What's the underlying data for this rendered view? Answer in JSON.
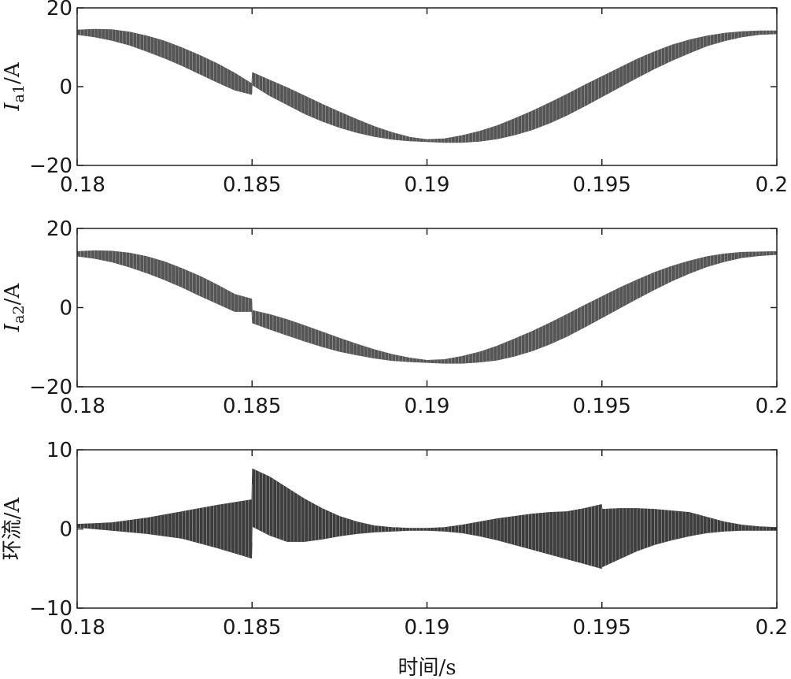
{
  "chart_data": [
    {
      "type": "line",
      "ylabel_main": "I",
      "ylabel_sub": "a1",
      "ylabel_unit": "/A",
      "xlabel": "",
      "xlim": [
        0.18,
        0.2
      ],
      "ylim": [
        -20,
        20
      ],
      "xticks": [
        0.18,
        0.185,
        0.19,
        0.195,
        0.2
      ],
      "xtick_labels": [
        "0.18",
        "0.185",
        "0.19",
        "0.195",
        "0.2"
      ],
      "yticks": [
        -20,
        0,
        20
      ],
      "ytick_labels": [
        "−20",
        "0",
        "20"
      ],
      "grid": false,
      "color": "#555555",
      "series": [
        {
          "x": [
            0.18,
            0.1805,
            0.181,
            0.1815,
            0.182,
            0.1825,
            0.183,
            0.1835,
            0.184,
            0.1845,
            0.18499,
            0.18501,
            0.1855,
            0.186,
            0.1865,
            0.187,
            0.1875,
            0.188,
            0.1885,
            0.189,
            0.1895,
            0.19,
            0.1905,
            0.191,
            0.1915,
            0.192,
            0.1925,
            0.193,
            0.1935,
            0.194,
            0.1945,
            0.195,
            0.1955,
            0.196,
            0.1965,
            0.197,
            0.1975,
            0.198,
            0.1985,
            0.199,
            0.1995,
            0.2
          ],
          "center": [
            13.8,
            13.6,
            13.1,
            12.2,
            10.9,
            9.4,
            7.6,
            5.6,
            3.5,
            1.3,
            -0.6,
            2.0,
            -0.3,
            -2.4,
            -4.6,
            -6.6,
            -8.4,
            -10.0,
            -11.4,
            -12.5,
            -13.3,
            -13.7,
            -13.7,
            -13.3,
            -12.6,
            -11.6,
            -10.2,
            -8.6,
            -6.7,
            -4.6,
            -2.3,
            0.0,
            2.3,
            4.6,
            6.7,
            8.6,
            10.2,
            11.6,
            12.6,
            13.3,
            13.7,
            13.8
          ],
          "ripple": [
            0.6,
            1.0,
            1.4,
            1.7,
            2.0,
            2.2,
            2.3,
            2.4,
            2.4,
            2.2,
            1.4,
            1.6,
            2.0,
            2.2,
            2.3,
            2.2,
            2.0,
            1.7,
            1.3,
            0.9,
            0.5,
            0.3,
            0.5,
            0.9,
            1.3,
            1.7,
            2.1,
            2.4,
            2.6,
            2.7,
            2.7,
            2.6,
            2.5,
            2.4,
            2.2,
            2.0,
            1.7,
            1.3,
            1.0,
            0.7,
            0.5,
            0.4
          ]
        }
      ]
    },
    {
      "type": "line",
      "ylabel_main": "I",
      "ylabel_sub": "a2",
      "ylabel_unit": "/A",
      "xlabel": "",
      "xlim": [
        0.18,
        0.2
      ],
      "ylim": [
        -20,
        20
      ],
      "xticks": [
        0.18,
        0.185,
        0.19,
        0.195,
        0.2
      ],
      "xtick_labels": [
        "0.18",
        "0.185",
        "0.19",
        "0.195",
        "0.2"
      ],
      "yticks": [
        -20,
        0,
        20
      ],
      "ytick_labels": [
        "−20",
        "0",
        "20"
      ],
      "grid": false,
      "color": "#555555",
      "series": [
        {
          "x": [
            0.18,
            0.1805,
            0.181,
            0.1815,
            0.182,
            0.1825,
            0.183,
            0.1835,
            0.184,
            0.1845,
            0.18499,
            0.18501,
            0.1855,
            0.186,
            0.1865,
            0.187,
            0.1875,
            0.188,
            0.1885,
            0.189,
            0.1895,
            0.19,
            0.1905,
            0.191,
            0.1915,
            0.192,
            0.1925,
            0.193,
            0.1935,
            0.194,
            0.1945,
            0.195,
            0.1955,
            0.196,
            0.1965,
            0.197,
            0.1975,
            0.198,
            0.1985,
            0.199,
            0.1995,
            0.2
          ],
          "center": [
            13.6,
            13.4,
            12.9,
            12.0,
            10.8,
            9.3,
            7.5,
            5.5,
            3.4,
            1.2,
            0.6,
            -2.3,
            -3.6,
            -5.0,
            -6.5,
            -8.0,
            -9.4,
            -10.6,
            -11.7,
            -12.6,
            -13.2,
            -13.6,
            -13.6,
            -13.2,
            -12.5,
            -11.5,
            -10.1,
            -8.5,
            -6.6,
            -4.5,
            -2.2,
            0.1,
            2.4,
            4.6,
            6.7,
            8.6,
            10.2,
            11.6,
            12.6,
            13.3,
            13.6,
            13.8
          ],
          "ripple": [
            0.6,
            1.0,
            1.4,
            1.8,
            2.1,
            2.3,
            2.4,
            2.5,
            2.4,
            2.2,
            1.6,
            1.6,
            1.9,
            2.0,
            2.0,
            1.9,
            1.7,
            1.4,
            1.1,
            0.8,
            0.5,
            0.3,
            0.5,
            0.9,
            1.3,
            1.8,
            2.2,
            2.5,
            2.7,
            2.8,
            2.8,
            2.7,
            2.6,
            2.4,
            2.2,
            1.9,
            1.6,
            1.3,
            1.0,
            0.7,
            0.5,
            0.4
          ]
        }
      ]
    },
    {
      "type": "line",
      "ylabel_main": "环流",
      "ylabel_sub": "",
      "ylabel_unit": "/A",
      "xlabel": "时间/s",
      "xlim": [
        0.18,
        0.2
      ],
      "ylim": [
        -10,
        10
      ],
      "xticks": [
        0.18,
        0.185,
        0.19,
        0.195,
        0.2
      ],
      "xtick_labels": [
        "0.18",
        "0.185",
        "0.19",
        "0.195",
        "0.2"
      ],
      "yticks": [
        -10,
        0,
        10
      ],
      "ytick_labels": [
        "−10",
        "0",
        "10"
      ],
      "grid": false,
      "color": "#3d3d3d",
      "series": [
        {
          "x": [
            0.18,
            0.181,
            0.182,
            0.183,
            0.184,
            0.18499,
            0.18501,
            0.1855,
            0.186,
            0.1865,
            0.187,
            0.1875,
            0.188,
            0.1885,
            0.189,
            0.1895,
            0.19,
            0.1905,
            0.191,
            0.1915,
            0.192,
            0.1925,
            0.193,
            0.1935,
            0.194,
            0.1945,
            0.19499,
            0.19501,
            0.1955,
            0.196,
            0.1965,
            0.197,
            0.1975,
            0.198,
            0.1985,
            0.199,
            0.1995,
            0.2
          ],
          "upper": [
            0.6,
            0.8,
            1.4,
            2.2,
            3.0,
            3.7,
            7.6,
            6.6,
            5.2,
            3.8,
            2.6,
            1.6,
            0.9,
            0.4,
            0.2,
            0.1,
            0.1,
            0.2,
            0.5,
            0.9,
            1.3,
            1.6,
            1.9,
            2.1,
            2.2,
            2.6,
            3.1,
            2.5,
            2.6,
            2.6,
            2.5,
            2.3,
            2.1,
            1.5,
            0.9,
            0.5,
            0.3,
            0.2
          ],
          "lower": [
            0.2,
            -0.2,
            -0.6,
            -1.2,
            -2.4,
            -3.7,
            0.3,
            -0.8,
            -1.6,
            -1.6,
            -1.3,
            -0.9,
            -0.6,
            -0.4,
            -0.3,
            -0.2,
            -0.2,
            -0.3,
            -0.5,
            -0.9,
            -1.4,
            -2.0,
            -2.6,
            -3.2,
            -3.8,
            -4.4,
            -5.0,
            -4.8,
            -3.8,
            -2.8,
            -2.0,
            -1.4,
            -0.9,
            -0.5,
            -0.3,
            -0.2,
            -0.2,
            -0.2
          ]
        }
      ]
    }
  ]
}
